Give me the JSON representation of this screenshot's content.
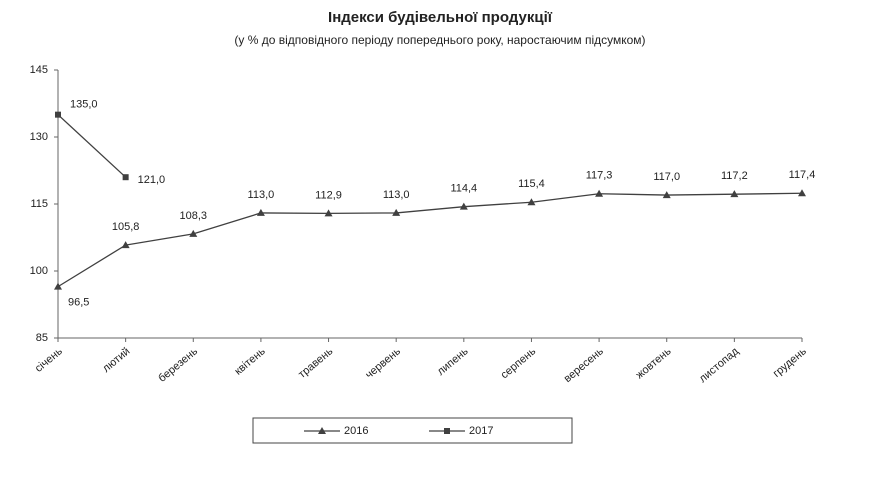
{
  "chart_data": {
    "type": "line",
    "title": "Індекси будівельної продукції",
    "subtitle": "(у % до відповідного періоду попереднього року, наростаючим підсумком)",
    "categories": [
      "січень",
      "лютий",
      "березень",
      "квітень",
      "травень",
      "червень",
      "липень",
      "серпень",
      "вересень",
      "жовтень",
      "листопад",
      "грудень"
    ],
    "series": [
      {
        "name": "2016",
        "color": "#404040",
        "marker": "triangle",
        "values": [
          96.5,
          105.8,
          108.3,
          113.0,
          112.9,
          113.0,
          114.4,
          115.4,
          117.3,
          117.0,
          117.2,
          117.4
        ],
        "value_labels": [
          "96,5",
          "105,8",
          "108,3",
          "113,0",
          "112,9",
          "113,0",
          "114,4",
          "115,4",
          "117,3",
          "117,0",
          "117,2",
          "117,4"
        ]
      },
      {
        "name": "2017",
        "color": "#404040",
        "marker": "square",
        "values": [
          135.0,
          121.0,
          null,
          null,
          null,
          null,
          null,
          null,
          null,
          null,
          null,
          null
        ],
        "value_labels": [
          "135,0",
          "121,0",
          null,
          null,
          null,
          null,
          null,
          null,
          null,
          null,
          null,
          null
        ]
      }
    ],
    "ylim": [
      85,
      145
    ],
    "yticks": [
      85,
      100,
      115,
      130,
      145
    ],
    "legend": "bottom"
  }
}
